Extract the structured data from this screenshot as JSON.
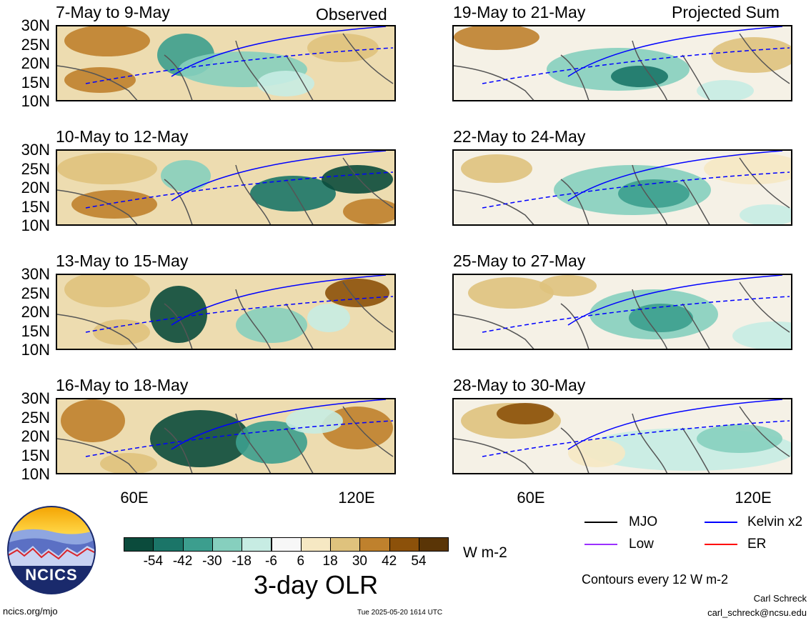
{
  "headers": {
    "observed": "Observed",
    "projected": "Projected Sum"
  },
  "panels": [
    {
      "title": "7-May to 9-May",
      "col": 0,
      "row": 0
    },
    {
      "title": "10-May to 12-May",
      "col": 0,
      "row": 1
    },
    {
      "title": "13-May to 15-May",
      "col": 0,
      "row": 2
    },
    {
      "title": "16-May to 18-May",
      "col": 0,
      "row": 3
    },
    {
      "title": "19-May to 21-May",
      "col": 1,
      "row": 0
    },
    {
      "title": "22-May to 24-May",
      "col": 1,
      "row": 1
    },
    {
      "title": "25-May to 27-May",
      "col": 1,
      "row": 2
    },
    {
      "title": "28-May to 30-May",
      "col": 1,
      "row": 3
    }
  ],
  "lat_labels": [
    "30N",
    "25N",
    "20N",
    "15N",
    "10N"
  ],
  "lon_labels": [
    "60E",
    "120E"
  ],
  "colorbar": {
    "colors": [
      "#0b4b3c",
      "#1b7568",
      "#3c9e8e",
      "#86cfbe",
      "#c7ece3",
      "#f7f7f7",
      "#f6e8c3",
      "#dfc27d",
      "#bf812d",
      "#8c510a",
      "#5a3506"
    ],
    "labels": [
      "-54",
      "-42",
      "-30",
      "-18",
      "-6",
      "6",
      "18",
      "30",
      "42",
      "54"
    ],
    "units": "W m-2",
    "title": "3-day OLR"
  },
  "legend": [
    {
      "label": "MJO",
      "color": "#000000"
    },
    {
      "label": "Kelvin x2",
      "color": "#0000ff"
    },
    {
      "label": "Low",
      "color": "#9b30ff"
    },
    {
      "label": "ER",
      "color": "#ff0000"
    }
  ],
  "contour_note": "Contours every 12 W m-2",
  "logo": {
    "text": "NCICS"
  },
  "footer": {
    "site": "ncics.org/mjo",
    "timestamp": "Tue 2025-05-20 1614 UTC",
    "author": "Carl Schreck",
    "email": "carl_schreck@ncsu.edu"
  }
}
